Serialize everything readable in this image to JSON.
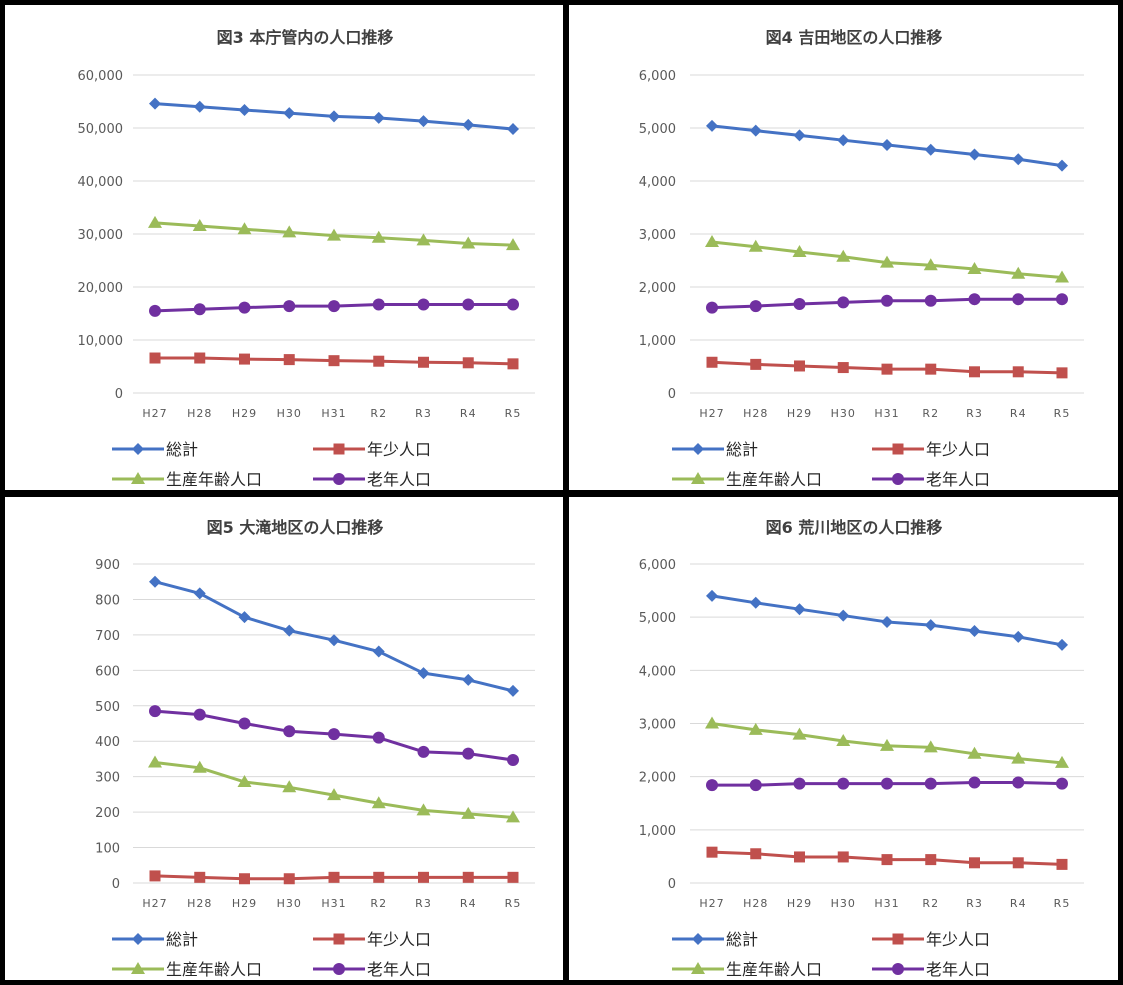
{
  "colors": {
    "総計": "#4472c4",
    "年少人口": "#c0504d",
    "生産年齢人口": "#9bbb59",
    "老年人口": "#7030a0",
    "gridline": "#d9d9d9",
    "axis_text": "#595959"
  },
  "legend": {
    "total": "総計",
    "youth": "年少人口",
    "working": "生産年齢人口",
    "elderly": "老年人口"
  },
  "chart_data": [
    {
      "type": "line",
      "title": "図3 本庁管内の人口推移",
      "categories": [
        "H27",
        "H28",
        "H29",
        "H30",
        "H31",
        "R2",
        "R3",
        "R4",
        "R5"
      ],
      "ylim": [
        0,
        60000
      ],
      "yticks": [
        "0",
        "10,000",
        "20,000",
        "30,000",
        "40,000",
        "50,000",
        "60,000"
      ],
      "grid": true,
      "legend_position": "bottom",
      "series": [
        {
          "name": "総計",
          "marker": "diamond",
          "values": [
            54600,
            54000,
            53400,
            52800,
            52200,
            51900,
            51300,
            50600,
            49800
          ]
        },
        {
          "name": "年少人口",
          "marker": "square",
          "values": [
            6600,
            6600,
            6400,
            6300,
            6100,
            6000,
            5800,
            5700,
            5500
          ]
        },
        {
          "name": "生産年齢人口",
          "marker": "triangle",
          "values": [
            32100,
            31500,
            30900,
            30300,
            29700,
            29300,
            28800,
            28200,
            27900
          ]
        },
        {
          "name": "老年人口",
          "marker": "circle",
          "values": [
            15500,
            15800,
            16100,
            16400,
            16400,
            16700,
            16700,
            16700,
            16700
          ]
        }
      ]
    },
    {
      "type": "line",
      "title": "図4 吉田地区の人口推移",
      "categories": [
        "H27",
        "H28",
        "H29",
        "H30",
        "H31",
        "R2",
        "R3",
        "R4",
        "R5"
      ],
      "ylim": [
        0,
        6000
      ],
      "yticks": [
        "0",
        "1,000",
        "2,000",
        "3,000",
        "4,000",
        "5,000",
        "6,000"
      ],
      "grid": true,
      "legend_position": "bottom",
      "series": [
        {
          "name": "総計",
          "marker": "diamond",
          "values": [
            5040,
            4950,
            4860,
            4770,
            4680,
            4590,
            4500,
            4410,
            4290
          ]
        },
        {
          "name": "年少人口",
          "marker": "square",
          "values": [
            580,
            540,
            510,
            480,
            450,
            450,
            400,
            400,
            380
          ]
        },
        {
          "name": "生産年齢人口",
          "marker": "triangle",
          "values": [
            2850,
            2760,
            2660,
            2570,
            2460,
            2410,
            2340,
            2250,
            2180
          ]
        },
        {
          "name": "老年人口",
          "marker": "circle",
          "values": [
            1610,
            1640,
            1680,
            1710,
            1740,
            1740,
            1770,
            1770,
            1770
          ]
        }
      ]
    },
    {
      "type": "line",
      "title": "図5 大滝地区の人口推移",
      "categories": [
        "H27",
        "H28",
        "H29",
        "H30",
        "H31",
        "R2",
        "R3",
        "R4",
        "R5"
      ],
      "ylim": [
        0,
        900
      ],
      "yticks": [
        "0",
        "100",
        "200",
        "300",
        "400",
        "500",
        "600",
        "700",
        "800",
        "900"
      ],
      "grid": true,
      "legend_position": "bottom",
      "series": [
        {
          "name": "総計",
          "marker": "diamond",
          "values": [
            850,
            817,
            750,
            712,
            685,
            653,
            592,
            573,
            542
          ]
        },
        {
          "name": "年少人口",
          "marker": "square",
          "values": [
            20,
            16,
            12,
            12,
            16,
            16,
            16,
            16,
            16
          ]
        },
        {
          "name": "生産年齢人口",
          "marker": "triangle",
          "values": [
            340,
            325,
            285,
            270,
            248,
            225,
            205,
            195,
            185
          ]
        },
        {
          "name": "老年人口",
          "marker": "circle",
          "values": [
            485,
            475,
            450,
            428,
            420,
            410,
            370,
            365,
            347
          ]
        }
      ]
    },
    {
      "type": "line",
      "title": "図6 荒川地区の人口推移",
      "categories": [
        "H27",
        "H28",
        "H29",
        "H30",
        "H31",
        "R2",
        "R3",
        "R4",
        "R5"
      ],
      "ylim": [
        0,
        6000
      ],
      "yticks": [
        "0",
        "1,000",
        "2,000",
        "3,000",
        "4,000",
        "5,000",
        "6,000"
      ],
      "grid": true,
      "legend_position": "bottom",
      "series": [
        {
          "name": "総計",
          "marker": "diamond",
          "values": [
            5400,
            5270,
            5150,
            5030,
            4910,
            4850,
            4740,
            4630,
            4480
          ]
        },
        {
          "name": "年少人口",
          "marker": "square",
          "values": [
            580,
            550,
            490,
            490,
            440,
            440,
            380,
            380,
            350
          ]
        },
        {
          "name": "生産年齢人口",
          "marker": "triangle",
          "values": [
            3000,
            2880,
            2790,
            2670,
            2580,
            2550,
            2430,
            2340,
            2260
          ]
        },
        {
          "name": "老年人口",
          "marker": "circle",
          "values": [
            1840,
            1840,
            1870,
            1870,
            1870,
            1870,
            1890,
            1890,
            1870
          ]
        }
      ]
    }
  ]
}
